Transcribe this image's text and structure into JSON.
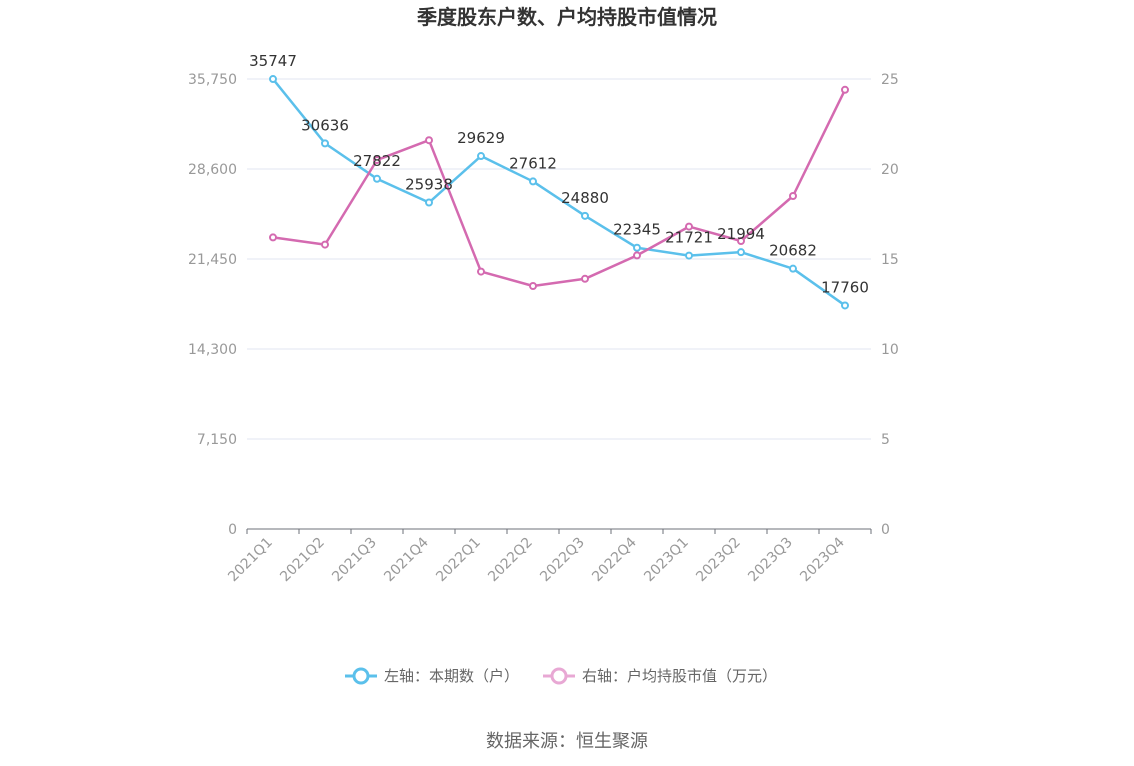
{
  "chart_data": {
    "type": "line",
    "title": "季度股东户数、户均持股市值情况",
    "categories": [
      "2021Q1",
      "2021Q2",
      "2021Q3",
      "2021Q4",
      "2022Q1",
      "2022Q2",
      "2022Q3",
      "2022Q4",
      "2023Q1",
      "2023Q2",
      "2023Q3",
      "2023Q4"
    ],
    "series": [
      {
        "name": "左轴：本期数（户）",
        "axis": "left",
        "color": "#5BC0EB",
        "values": [
          35747,
          30636,
          27822,
          25938,
          29629,
          27612,
          24880,
          22345,
          21721,
          21994,
          20682,
          17760
        ],
        "labels": [
          "35747",
          "30636",
          "27822",
          "25938",
          "29629",
          "27612",
          "24880",
          "22345",
          "21721",
          "21994",
          "20682",
          "17760"
        ]
      },
      {
        "name": "右轴：户均持股市值（万元）",
        "axis": "right",
        "color": "#D46AB0",
        "values": [
          16.2,
          15.8,
          20.5,
          21.6,
          14.3,
          13.5,
          13.9,
          15.2,
          16.8,
          16.0,
          18.5,
          24.4
        ]
      }
    ],
    "left_axis": {
      "ticks": [
        0,
        7150,
        14300,
        21450,
        28600,
        35750
      ],
      "tick_labels": [
        "0",
        "7,150",
        "14,300",
        "21,450",
        "28,600",
        "35,750"
      ],
      "ylim": [
        0,
        35750
      ]
    },
    "right_axis": {
      "ticks": [
        0,
        5,
        10,
        15,
        20,
        25
      ],
      "tick_labels": [
        "0",
        "5",
        "10",
        "15",
        "20",
        "25"
      ],
      "ylim": [
        0,
        25
      ]
    },
    "grid": true,
    "legend_position": "bottom-center"
  },
  "source_text": "数据来源：恒生聚源"
}
